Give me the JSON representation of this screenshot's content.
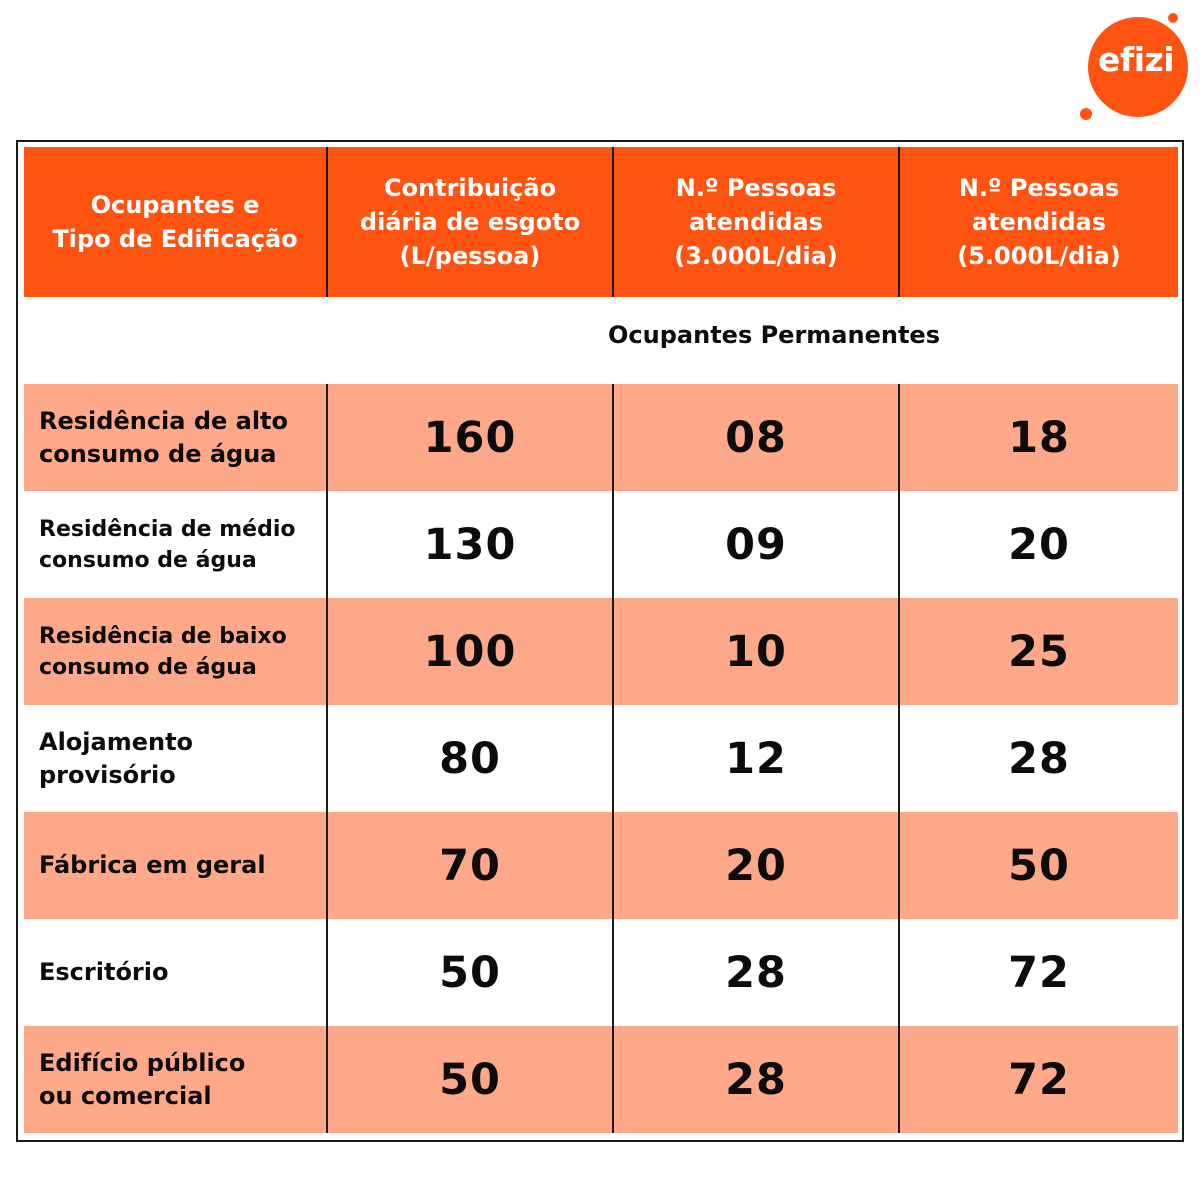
{
  "logo": {
    "text": "efizi",
    "color": "#ff5311"
  },
  "table": {
    "headers": [
      "Ocupantes e\nTipo de Edificação",
      "Contribuição\ndiária de esgoto\n(L/pessoa)",
      "N.º Pessoas\natendidas\n(3.000L/dia)",
      "N.º Pessoas\natendidas\n(5.000L/dia)"
    ],
    "section_title": "Ocupantes Permanentes",
    "rows": [
      {
        "name": "Residência de alto\nconsumo de água",
        "contribution": "160",
        "people_3000": "08",
        "people_5000": "18"
      },
      {
        "name": "Residência de médio\nconsumo de água",
        "contribution": "130",
        "people_3000": "09",
        "people_5000": "20"
      },
      {
        "name": "Residência de baixo\nconsumo de água",
        "contribution": "100",
        "people_3000": "10",
        "people_5000": "25"
      },
      {
        "name": "Alojamento\nprovisório",
        "contribution": "80",
        "people_3000": "12",
        "people_5000": "28"
      },
      {
        "name": "Fábrica em geral",
        "contribution": "70",
        "people_3000": "20",
        "people_5000": "50"
      },
      {
        "name": "Escritório",
        "contribution": "50",
        "people_3000": "28",
        "people_5000": "72"
      },
      {
        "name": "Edifício público\nou comercial",
        "contribution": "50",
        "people_3000": "28",
        "people_5000": "72"
      }
    ]
  },
  "colors": {
    "header_bg": "#ff5311",
    "shaded_row": "#fea88a",
    "plain_row": "#ffffff"
  }
}
